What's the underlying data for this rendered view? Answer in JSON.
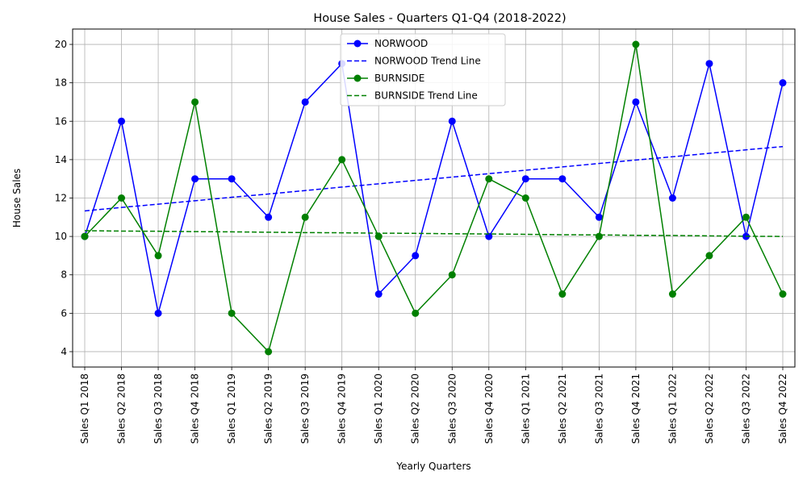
{
  "chart_data": {
    "type": "line",
    "title": "House Sales - Quarters Q1-Q4 (2018-2022)",
    "xlabel": "Yearly Quarters",
    "ylabel": "House Sales",
    "categories": [
      "Sales Q1 2018",
      "Sales Q2 2018",
      "Sales Q3 2018",
      "Sales Q4 2018",
      "Sales Q1 2019",
      "Sales Q2 2019",
      "Sales Q3 2019",
      "Sales Q4 2019",
      "Sales Q1 2020",
      "Sales Q2 2020",
      "Sales Q3 2020",
      "Sales Q4 2020",
      "Sales Q1 2021",
      "Sales Q2 2021",
      "Sales Q3 2021",
      "Sales Q4 2021",
      "Sales Q1 2022",
      "Sales Q2 2022",
      "Sales Q3 2022",
      "Sales Q4 2022"
    ],
    "ylim": [
      3.2,
      20.8
    ],
    "yticks": [
      4,
      6,
      8,
      10,
      12,
      14,
      16,
      18,
      20
    ],
    "grid": true,
    "legend_position": "top-center",
    "series": [
      {
        "name": "NORWOOD",
        "color": "#0000ff",
        "style": "solid-marker",
        "values": [
          10,
          16,
          6,
          13,
          13,
          11,
          17,
          19,
          7,
          9,
          16,
          10,
          13,
          13,
          11,
          17,
          12,
          19,
          10,
          18
        ]
      },
      {
        "name": "NORWOOD Trend Line",
        "color": "#0000ff",
        "style": "dashed",
        "values": [
          11.33,
          11.51,
          11.68,
          11.86,
          12.04,
          12.21,
          12.39,
          12.57,
          12.74,
          12.92,
          13.09,
          13.27,
          13.45,
          13.62,
          13.8,
          13.98,
          14.15,
          14.33,
          14.51,
          14.68
        ]
      },
      {
        "name": "BURNSIDE",
        "color": "#008000",
        "style": "solid-marker",
        "values": [
          10,
          12,
          9,
          17,
          6,
          4,
          11,
          14,
          10,
          6,
          8,
          13,
          12,
          7,
          10,
          20,
          7,
          9,
          11,
          7
        ]
      },
      {
        "name": "BURNSIDE Trend Line",
        "color": "#008000",
        "style": "dashed",
        "values": [
          10.3,
          10.28,
          10.27,
          10.25,
          10.24,
          10.22,
          10.2,
          10.19,
          10.17,
          10.16,
          10.14,
          10.13,
          10.11,
          10.09,
          10.08,
          10.06,
          10.05,
          10.03,
          10.01,
          10.0
        ]
      }
    ]
  }
}
